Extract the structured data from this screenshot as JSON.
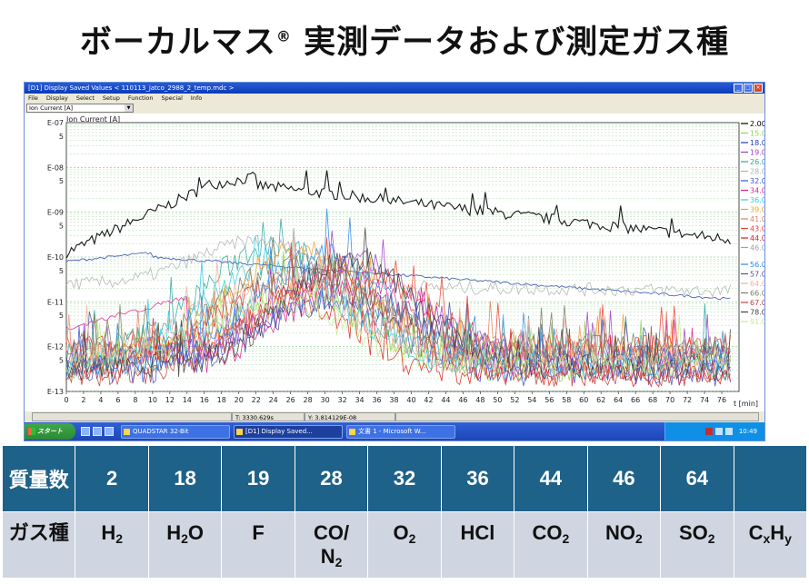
{
  "slide": {
    "title": "ボーカルマス",
    "title_mark": "®",
    "title_rest": " 実測データおよび測定ガス種"
  },
  "window": {
    "title": "[D1] Display Saved Values  < 110113_jatco_2988_2_temp.mdc >",
    "buttons": [
      "_",
      "□",
      "×"
    ],
    "menu": [
      "File",
      "Display",
      "Select",
      "Setup",
      "Function",
      "Special",
      "Info"
    ],
    "select_value": "Ion Current [A]"
  },
  "chart_data": {
    "type": "line",
    "ylabel": "Ion Current [A]",
    "xlabel": "t [min]",
    "yscale": "log",
    "ylim": [
      1e-13,
      1e-07
    ],
    "xlim": [
      0,
      78
    ],
    "y_tick_labels": [
      "E-07",
      "5",
      "E-08",
      "5",
      "E-09",
      "5",
      "E-10",
      "5",
      "E-11",
      "5",
      "E-12",
      "5",
      "E-13"
    ],
    "x_ticks": [
      0,
      2,
      4,
      6,
      8,
      10,
      12,
      14,
      16,
      18,
      20,
      22,
      24,
      26,
      28,
      30,
      32,
      34,
      36,
      38,
      40,
      42,
      44,
      46,
      48,
      50,
      52,
      54,
      56,
      58,
      60,
      62,
      64,
      66,
      68,
      70,
      72,
      74,
      76
    ],
    "grid": true,
    "legend_position": "right",
    "legend": [
      {
        "name": "2.00",
        "color": "#000000"
      },
      {
        "name": "15.00",
        "color": "#8fd14f"
      },
      {
        "name": "18.00",
        "color": "#1f3fa8"
      },
      {
        "name": "19.00",
        "color": "#a03cc8"
      },
      {
        "name": "26.00",
        "color": "#2aa6a0"
      },
      {
        "name": "28.00",
        "color": "#b0b0b0"
      },
      {
        "name": "32.00",
        "color": "#3a4fd8"
      },
      {
        "name": "34.00",
        "color": "#e0208c"
      },
      {
        "name": "36.00",
        "color": "#2ec8e8"
      },
      {
        "name": "39.00",
        "color": "#f0a028"
      },
      {
        "name": "41.00",
        "color": "#e08060"
      },
      {
        "name": "43.00",
        "color": "#f04030"
      },
      {
        "name": "44.00",
        "color": "#e02020"
      },
      {
        "name": "46.00",
        "color": "#a0a0a0"
      },
      {
        "name": "56.00",
        "color": "#2a8ae8"
      },
      {
        "name": "57.00",
        "color": "#5050a0"
      },
      {
        "name": "64.00",
        "color": "#f0b0a0"
      },
      {
        "name": "66.00",
        "color": "#7a7a60"
      },
      {
        "name": "67.00",
        "color": "#c04040"
      },
      {
        "name": "78.00",
        "color": "#404040"
      },
      {
        "name": "91.00",
        "color": "#c8e890"
      }
    ]
  },
  "statusbar": {
    "t_value": "T: 3330.629s",
    "y_value": "Y: 3.814129E-08"
  },
  "taskbar": {
    "start": "スタート",
    "tasks": [
      "QUADSTAR 32-Bit",
      "[D1] Display Saved...",
      "文書 1 - Microsoft W..."
    ],
    "clock": "10:49"
  },
  "table": {
    "header_label": "質量数",
    "gas_label": "ガス種",
    "masses": [
      "2",
      "18",
      "19",
      "28",
      "32",
      "36",
      "44",
      "46",
      "64",
      ""
    ],
    "gases": [
      {
        "base": "H",
        "sub": "2",
        "tail": ""
      },
      {
        "base": "H",
        "sub": "2",
        "tail": "O"
      },
      {
        "base": "F",
        "sub": "",
        "tail": ""
      },
      {
        "base": "CO/",
        "sub": "",
        "tail": "",
        "line2": "N",
        "line2_sub": "2"
      },
      {
        "base": "O",
        "sub": "2",
        "tail": ""
      },
      {
        "base": "HCl",
        "sub": "",
        "tail": ""
      },
      {
        "base": "CO",
        "sub": "2",
        "tail": ""
      },
      {
        "base": "NO",
        "sub": "2",
        "tail": ""
      },
      {
        "base": "SO",
        "sub": "2",
        "tail": ""
      },
      {
        "base": "C",
        "sub": "x",
        "tail": "H",
        "sub2": "y"
      }
    ]
  }
}
